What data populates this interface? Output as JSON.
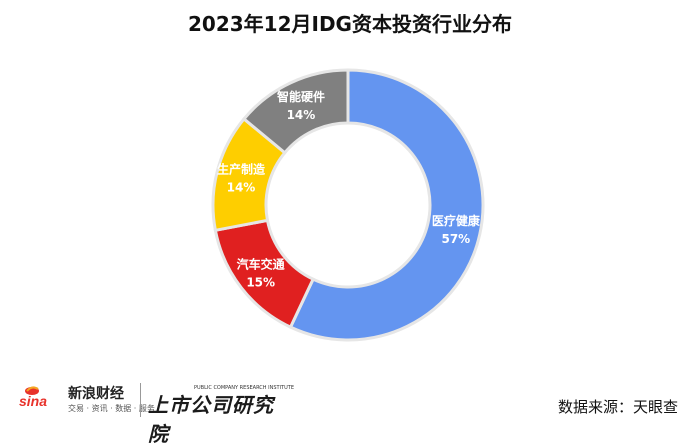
{
  "chart_data": {
    "type": "pie",
    "title": "2023年12月IDG资本投资行业分布",
    "donut": true,
    "start": "top",
    "direction": "clockwise",
    "slices": [
      {
        "label": "医疗健康",
        "value": 57,
        "display": "57%",
        "color": "#6495f0"
      },
      {
        "label": "汽车交通",
        "value": 15,
        "display": "15%",
        "color": "#e02020"
      },
      {
        "label": "生产制造",
        "value": 14,
        "display": "14%",
        "color": "#fece00"
      },
      {
        "label": "智能硬件",
        "value": 14,
        "display": "14%",
        "color": "#808080"
      }
    ]
  },
  "footer": {
    "sina_logo_text": "sina",
    "sina_brand": "新浪财经",
    "sina_tags": "交易 · 资讯 · 数据 · 服务",
    "institute_name": "上市公司研究院",
    "institute_en": "PUBLIC COMPANY RESEARCH INSTITUTE",
    "source": "数据来源：天眼查"
  }
}
